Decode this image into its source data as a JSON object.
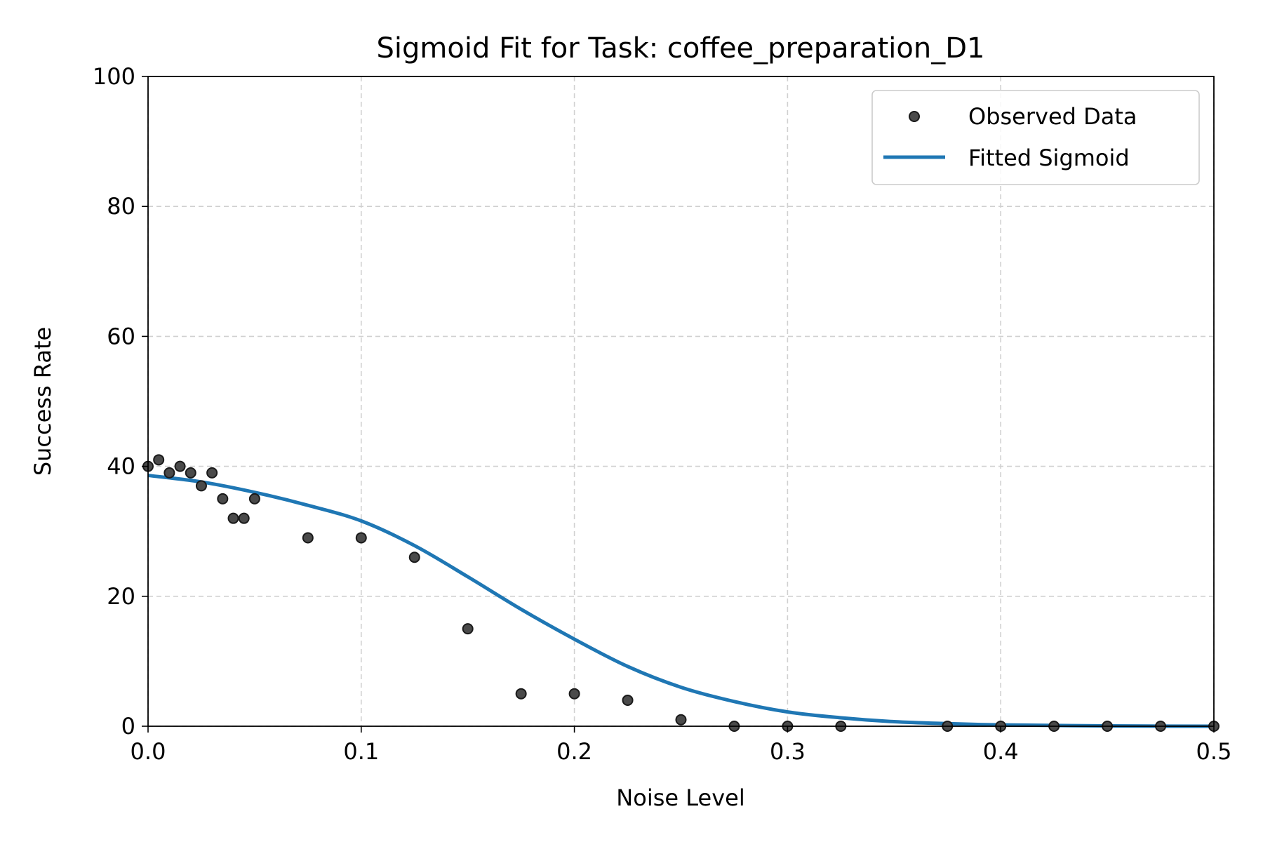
{
  "chart_data": {
    "type": "scatter",
    "title": "Sigmoid Fit for Task: coffee_preparation_D1",
    "xlabel": "Noise Level",
    "ylabel": "Success Rate",
    "xlim": [
      0.0,
      0.5
    ],
    "ylim": [
      0,
      100
    ],
    "x_ticks": [
      0.0,
      0.1,
      0.2,
      0.3,
      0.4,
      0.5
    ],
    "x_tick_labels": [
      "0.0",
      "0.1",
      "0.2",
      "0.3",
      "0.4",
      "0.5"
    ],
    "y_ticks": [
      0,
      20,
      40,
      60,
      80,
      100
    ],
    "y_tick_labels": [
      "0",
      "20",
      "40",
      "60",
      "80",
      "100"
    ],
    "grid": true,
    "legend_position": "top-right",
    "series": [
      {
        "name": "Observed Data",
        "kind": "scatter",
        "color": "#4a4a4a",
        "x": [
          0.0,
          0.005,
          0.01,
          0.015,
          0.02,
          0.025,
          0.03,
          0.035,
          0.04,
          0.045,
          0.05,
          0.075,
          0.1,
          0.125,
          0.15,
          0.175,
          0.2,
          0.225,
          0.25,
          0.275,
          0.3,
          0.325,
          0.375,
          0.4,
          0.425,
          0.45,
          0.475,
          0.5
        ],
        "y": [
          40,
          41,
          39,
          40,
          39,
          37,
          39,
          35,
          32,
          32,
          35,
          29,
          29,
          26,
          15,
          5,
          5,
          4,
          1,
          0,
          0,
          0,
          0,
          0,
          0,
          0,
          0,
          0
        ]
      },
      {
        "name": "Fitted Sigmoid",
        "kind": "line",
        "color": "#1f77b4",
        "x": [
          0.0,
          0.025,
          0.05,
          0.075,
          0.1,
          0.125,
          0.15,
          0.175,
          0.2,
          0.225,
          0.25,
          0.275,
          0.3,
          0.325,
          0.35,
          0.375,
          0.4,
          0.45,
          0.5
        ],
        "y": [
          38.6,
          37.6,
          36.0,
          34.0,
          31.6,
          27.8,
          23.0,
          18.0,
          13.4,
          9.2,
          6.0,
          3.8,
          2.2,
          1.3,
          0.7,
          0.4,
          0.2,
          0.05,
          0.0
        ]
      }
    ]
  }
}
